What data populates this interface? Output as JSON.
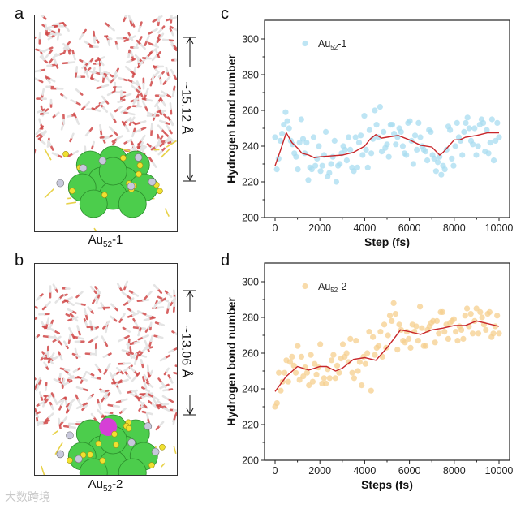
{
  "panels": [
    {
      "letter": "a",
      "caption_base": "Au",
      "caption_sub": "52",
      "caption_suffix": "-1",
      "dimension": "~15.12 Å"
    },
    {
      "letter": "b",
      "caption_base": "Au",
      "caption_sub": "52",
      "caption_suffix": "-2",
      "dimension": "~13.06 Å"
    }
  ],
  "watermark": "大数跨境",
  "colors": {
    "c_points": "#a8dcf0",
    "d_points": "#f6cf8e",
    "smooth": "#c8262a"
  },
  "chart_data": [
    {
      "type": "scatter",
      "panel": "c",
      "xlabel": "Step (fs)",
      "ylabel": "Hydrogen bond number",
      "legend": {
        "base": "Au",
        "sub": "52",
        "suffix": "-1",
        "placement": "top-left"
      },
      "xlim": [
        0,
        10000
      ],
      "ylim": [
        200,
        300
      ],
      "xticks": [
        "0",
        "2000",
        "4000",
        "6000",
        "8000",
        "10000"
      ],
      "yticks": [
        "200",
        "220",
        "240",
        "260",
        "280",
        "300"
      ],
      "points_x_range": [
        0,
        10000
      ],
      "points": [
        245,
        227,
        233,
        243,
        247,
        252,
        259,
        254,
        250,
        243,
        241,
        236,
        234,
        227,
        242,
        255,
        244,
        236,
        242,
        221,
        228,
        227,
        245,
        229,
        233,
        240,
        226,
        229,
        235,
        248,
        223,
        225,
        230,
        234,
        243,
        220,
        229,
        230,
        236,
        240,
        238,
        232,
        245,
        238,
        228,
        226,
        245,
        228,
        242,
        246,
        235,
        257,
        238,
        228,
        249,
        236,
        244,
        260,
        252,
        245,
        262,
        237,
        248,
        239,
        241,
        234,
        252,
        252,
        247,
        241,
        245,
        250,
        248,
        240,
        236,
        235,
        253,
        254,
        243,
        230,
        246,
        238,
        253,
        245,
        240,
        238,
        237,
        232,
        249,
        248,
        235,
        233,
        226,
        231,
        234,
        224,
        229,
        227,
        238,
        251,
        249,
        233,
        229,
        240,
        253,
        245,
        243,
        235,
        248,
        253,
        256,
        250,
        243,
        241,
        250,
        235,
        240,
        252,
        255,
        253,
        237,
        249,
        236,
        242,
        255,
        232,
        243,
        253,
        245
      ],
      "smooth": {
        "x": [
          0,
          250,
          500,
          750,
          1000,
          1200,
          1500,
          1750,
          2000,
          2500,
          3000,
          3500,
          4000,
          4250,
          4500,
          4750,
          5000,
          5500,
          6000,
          6500,
          7000,
          7350,
          7500,
          8000,
          8250,
          8500,
          9000,
          9500,
          10000
        ],
        "y": [
          229,
          238,
          247.5,
          242,
          239,
          236,
          235,
          233.5,
          234,
          234.5,
          235,
          236.5,
          240,
          244,
          246.5,
          244.5,
          245,
          246,
          243.5,
          240.5,
          239.5,
          235,
          236.5,
          243.5,
          243.5,
          245,
          246,
          247.5,
          247.5
        ]
      }
    },
    {
      "type": "scatter",
      "panel": "d",
      "xlabel": "Steps (fs)",
      "ylabel": "Hydrogen bond number",
      "legend": {
        "base": "Au",
        "sub": "52",
        "suffix": "-2",
        "placement": "top-left"
      },
      "xlim": [
        0,
        10000
      ],
      "ylim": [
        200,
        300
      ],
      "xticks": [
        "0",
        "2000",
        "4000",
        "6000",
        "8000",
        "10000"
      ],
      "yticks": [
        "200",
        "220",
        "240",
        "260",
        "280",
        "300"
      ],
      "points_x_range": [
        0,
        10000
      ],
      "points": [
        230,
        232,
        249,
        239,
        244,
        249,
        256,
        244,
        255,
        258,
        253,
        249,
        264,
        245,
        258,
        247,
        252,
        249,
        242,
        259,
        244,
        254,
        248,
        252,
        265,
        243,
        246,
        243,
        251,
        246,
        256,
        259,
        246,
        253,
        249,
        257,
        265,
        258,
        260,
        255,
        268,
        249,
        246,
        267,
        250,
        255,
        242,
        258,
        254,
        260,
        272,
        239,
        269,
        259,
        263,
        264,
        272,
        258,
        276,
        263,
        270,
        281,
        278,
        288,
        282,
        262,
        276,
        273,
        267,
        266,
        272,
        268,
        263,
        276,
        272,
        275,
        267,
        286,
        274,
        264,
        264,
        273,
        275,
        277,
        278,
        266,
        278,
        271,
        283,
        283,
        272,
        276,
        268,
        277,
        278,
        279,
        272,
        267,
        275,
        273,
        268,
        281,
        285,
        275,
        282,
        271,
        278,
        285,
        271,
        283,
        280,
        276,
        273,
        282,
        283,
        269,
        271,
        275,
        281,
        271
      ],
      "smooth": {
        "x": [
          0,
          500,
          1000,
          1500,
          2000,
          2300,
          2700,
          3000,
          3500,
          4000,
          4500,
          5000,
          5600,
          6000,
          6500,
          7000,
          7500,
          8000,
          8500,
          9000,
          9500,
          10000
        ],
        "y": [
          238.5,
          247,
          252.5,
          250.5,
          252.5,
          252.5,
          250,
          251.5,
          256.5,
          257.5,
          256,
          263,
          273,
          272,
          270.5,
          273,
          274,
          275.5,
          275.5,
          278,
          276.5,
          275
        ]
      }
    }
  ]
}
